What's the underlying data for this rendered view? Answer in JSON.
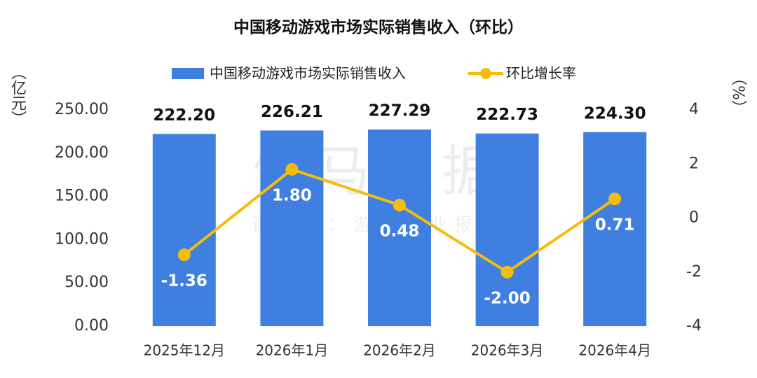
{
  "chart_data": {
    "type": "combo",
    "title": "中国移动游戏市场实际销售收入（环比）",
    "y_label": "（亿元）",
    "y2_label": "（%）",
    "watermark": "伽马数据",
    "watermark_subtitle": "微信号：游戏产业报告",
    "categories": [
      "2025年12月",
      "2026年1月",
      "2026年2月",
      "2026年3月",
      "2026年4月"
    ],
    "series": [
      {
        "name": "中国移动游戏市场实际销售收入",
        "type": "bar",
        "color": "#3f7fe0",
        "values": [
          222.2,
          226.21,
          227.29,
          222.73,
          224.3
        ],
        "value_labels": [
          "222.20",
          "226.21",
          "227.29",
          "222.73",
          "224.30"
        ]
      },
      {
        "name": "环比增长率",
        "type": "line",
        "axis": "y2",
        "color": "#f5bd0a",
        "values": [
          -1.36,
          1.8,
          0.48,
          -2.0,
          0.71
        ],
        "value_labels": [
          "-1.36",
          "1.80",
          "0.48",
          "-2.00",
          "0.71"
        ]
      }
    ],
    "ylim": [
      0,
      250
    ],
    "yticks": [
      {
        "value": 0,
        "label": "0.00"
      },
      {
        "value": 50,
        "label": "50.00"
      },
      {
        "value": 100,
        "label": "100.00"
      },
      {
        "value": 150,
        "label": "150.00"
      },
      {
        "value": 200,
        "label": "200.00"
      },
      {
        "value": 250,
        "label": "250.00"
      }
    ],
    "y2lim": [
      -4,
      4
    ],
    "y2ticks": [
      -4,
      -2,
      0,
      2,
      4
    ],
    "grid": false,
    "legend": "top"
  }
}
